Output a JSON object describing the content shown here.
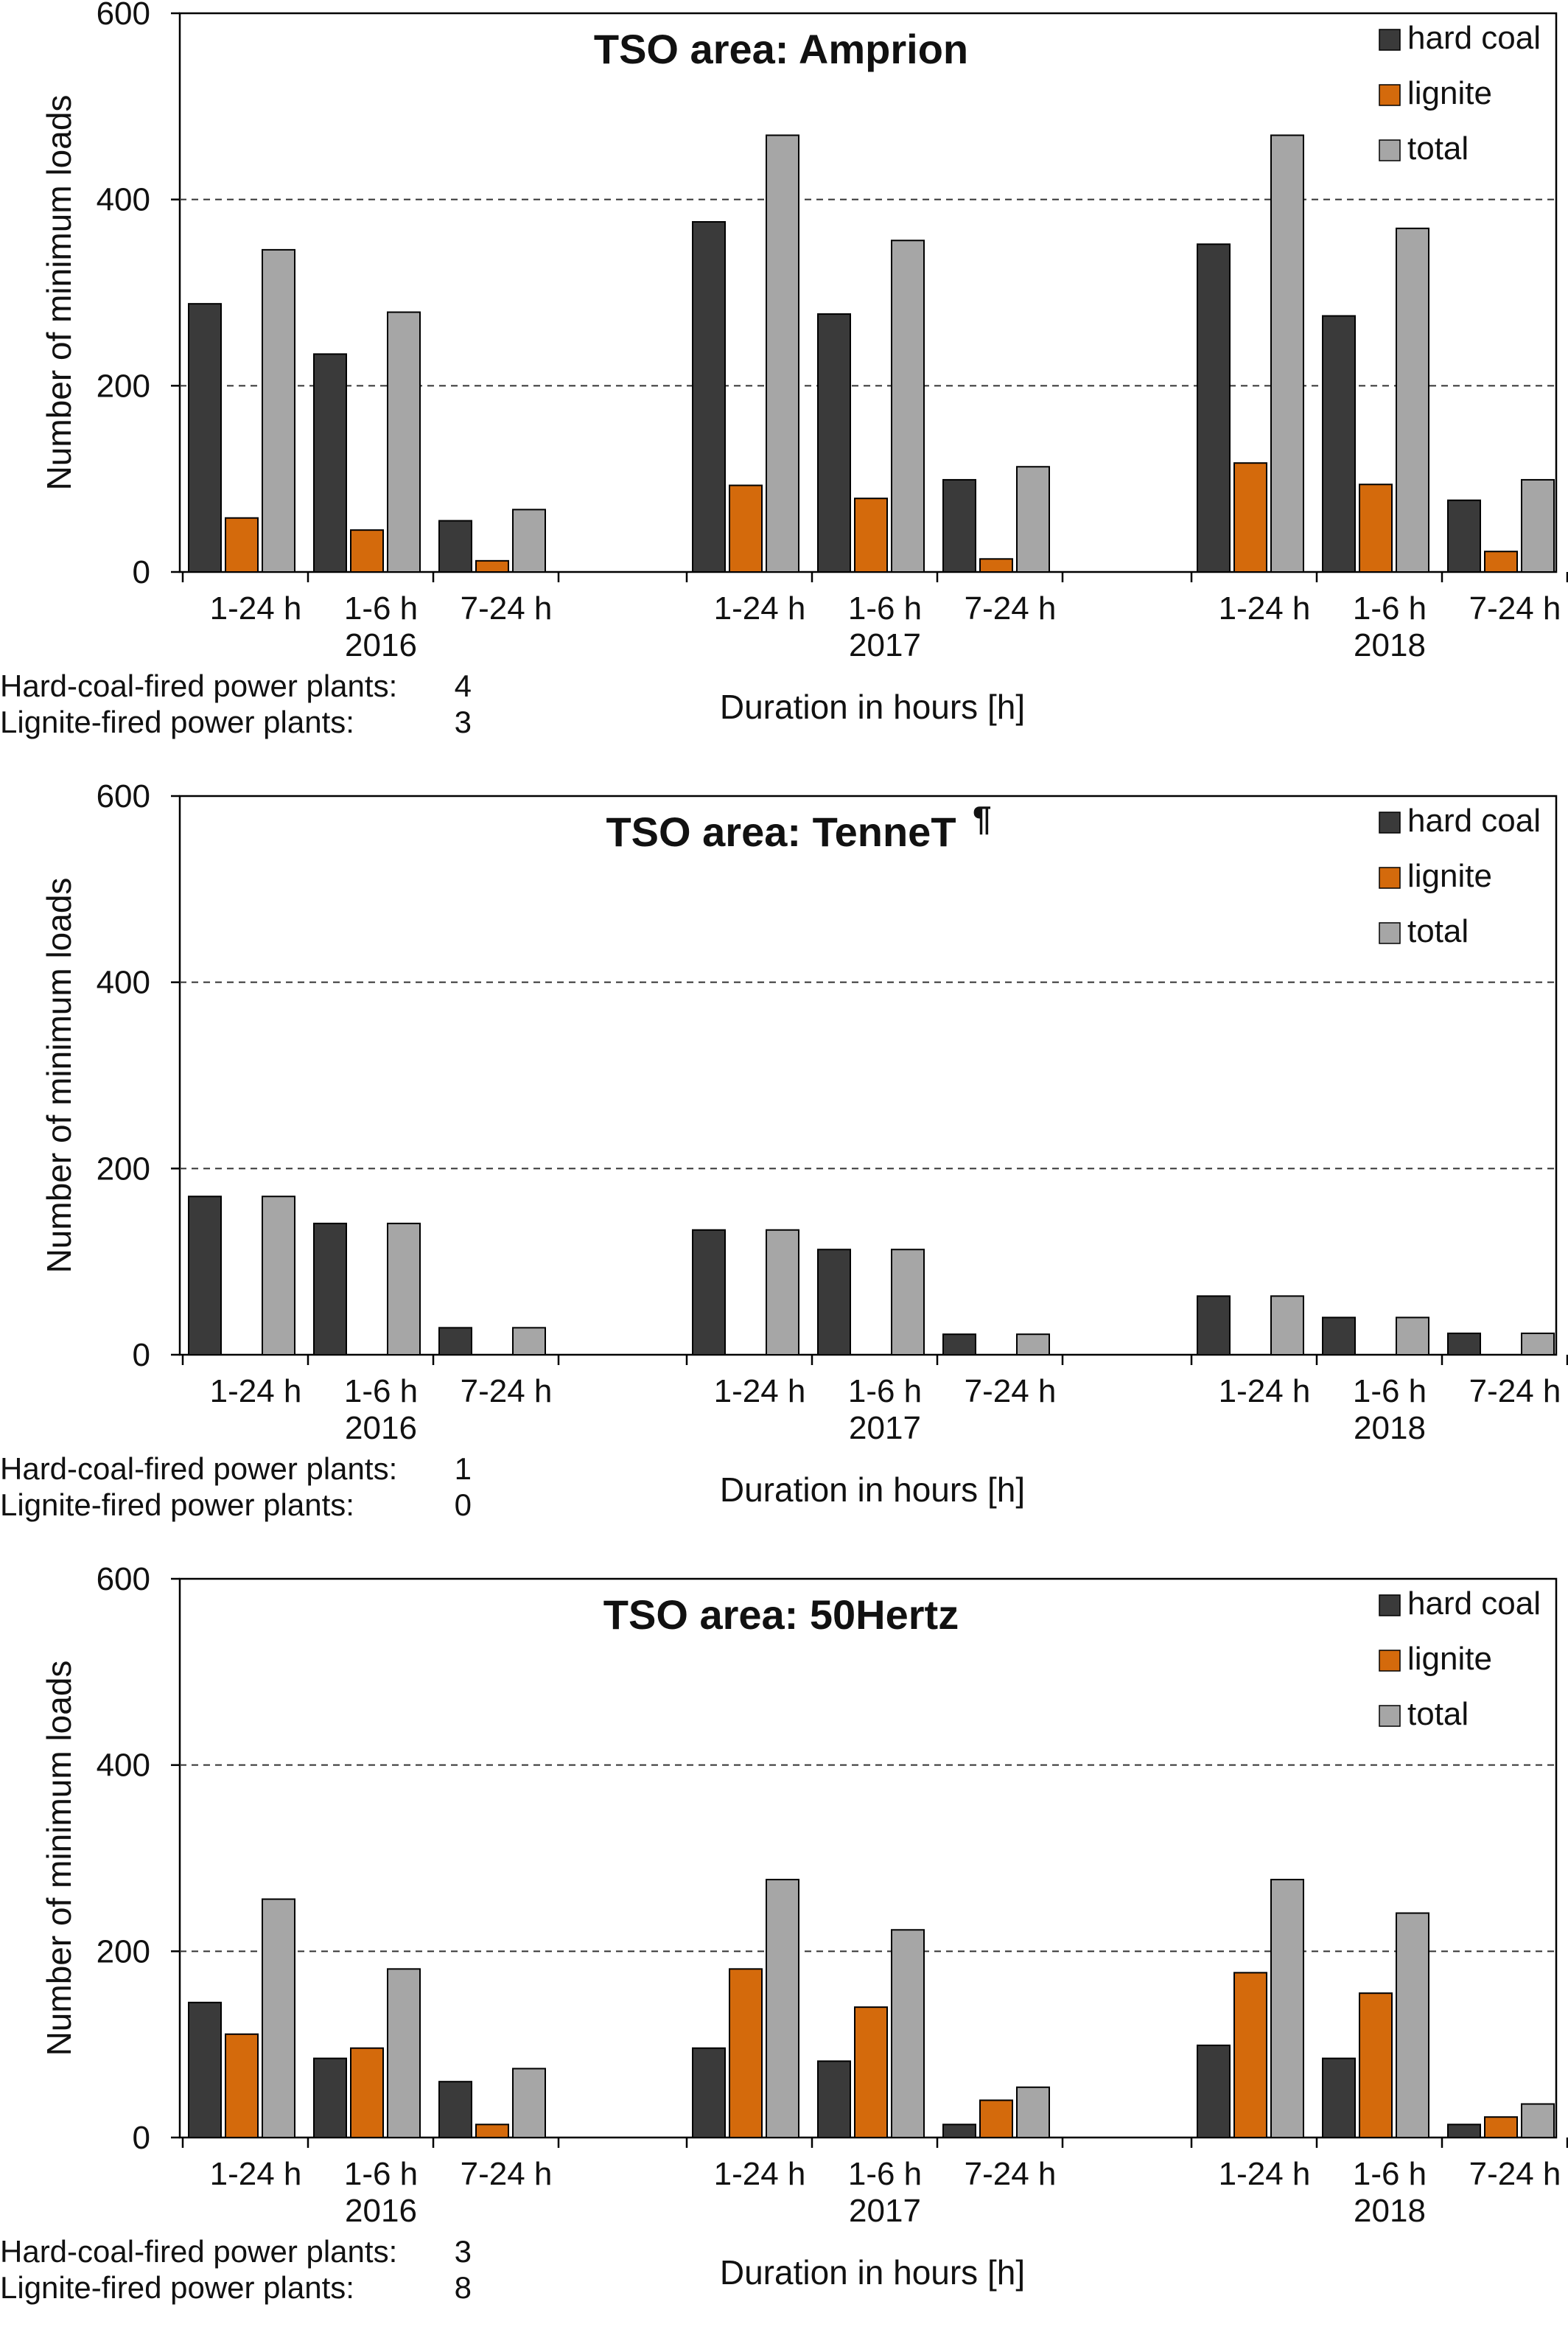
{
  "colors": {
    "hard_coal": "#3a3a3a",
    "lignite": "#d46a0c",
    "total": "#a6a6a6",
    "grid": "#333333",
    "axis": "#000000"
  },
  "chart_data": [
    {
      "type": "bar",
      "title": "TSO area: Amprion",
      "ylabel": "Number of minimum loads",
      "xlabel": "Duration in hours [h]",
      "ylim": [
        0,
        600
      ],
      "yticks": [
        0,
        200,
        400,
        600
      ],
      "grid": "horizontal dashed at 200 and 400",
      "legend_position": "top-right",
      "legend": [
        {
          "name": "hard coal",
          "color": "#3a3a3a"
        },
        {
          "name": "lignite",
          "color": "#d46a0c"
        },
        {
          "name": "total",
          "color": "#a6a6a6"
        }
      ],
      "groups": [
        {
          "year": "2016",
          "categories": [
            "1-24 h",
            "1-6 h",
            "7-24 h"
          ],
          "hard_coal": [
            288,
            234,
            55
          ],
          "lignite": [
            58,
            45,
            12
          ],
          "total": [
            346,
            279,
            67
          ]
        },
        {
          "year": "2017",
          "categories": [
            "1-24 h",
            "1-6 h",
            "7-24 h"
          ],
          "hard_coal": [
            376,
            277,
            99
          ],
          "lignite": [
            93,
            79,
            14
          ],
          "total": [
            469,
            356,
            113
          ]
        },
        {
          "year": "2018",
          "categories": [
            "1-24 h",
            "1-6 h",
            "7-24 h"
          ],
          "hard_coal": [
            352,
            275,
            77
          ],
          "lignite": [
            117,
            94,
            22
          ],
          "total": [
            469,
            369,
            99
          ]
        }
      ],
      "notes": [
        {
          "label": "Hard-coal-fired power plants:",
          "value": "4"
        },
        {
          "label": "Lignite-fired power plants:",
          "value": "3"
        }
      ]
    },
    {
      "type": "bar",
      "title": "TSO area: TenneT",
      "title_mark": "¶",
      "ylabel": "Number of minimum loads",
      "xlabel": "Duration in hours [h]",
      "ylim": [
        0,
        600
      ],
      "yticks": [
        0,
        200,
        400,
        600
      ],
      "grid": "horizontal dashed at 200 and 400",
      "legend_position": "top-right",
      "legend": [
        {
          "name": "hard coal",
          "color": "#3a3a3a"
        },
        {
          "name": "lignite",
          "color": "#d46a0c"
        },
        {
          "name": "total",
          "color": "#a6a6a6"
        }
      ],
      "groups": [
        {
          "year": "2016",
          "categories": [
            "1-24 h",
            "1-6 h",
            "7-24 h"
          ],
          "hard_coal": [
            170,
            141,
            29
          ],
          "lignite": [
            0,
            0,
            0
          ],
          "total": [
            170,
            141,
            29
          ]
        },
        {
          "year": "2017",
          "categories": [
            "1-24 h",
            "1-6 h",
            "7-24 h"
          ],
          "hard_coal": [
            134,
            113,
            22
          ],
          "lignite": [
            0,
            0,
            0
          ],
          "total": [
            134,
            113,
            22
          ]
        },
        {
          "year": "2018",
          "categories": [
            "1-24 h",
            "1-6 h",
            "7-24 h"
          ],
          "hard_coal": [
            63,
            40,
            23
          ],
          "lignite": [
            0,
            0,
            0
          ],
          "total": [
            63,
            40,
            23
          ]
        }
      ],
      "notes": [
        {
          "label": "Hard-coal-fired power plants:",
          "value": "1"
        },
        {
          "label": "Lignite-fired power plants:",
          "value": "0"
        }
      ]
    },
    {
      "type": "bar",
      "title": "TSO area: 50Hertz",
      "ylabel": "Number of minimum loads",
      "xlabel": "Duration in hours [h]",
      "ylim": [
        0,
        600
      ],
      "yticks": [
        0,
        200,
        400,
        600
      ],
      "grid": "horizontal dashed at 200 and 400",
      "legend_position": "top-right",
      "legend": [
        {
          "name": "hard coal",
          "color": "#3a3a3a"
        },
        {
          "name": "lignite",
          "color": "#d46a0c"
        },
        {
          "name": "total",
          "color": "#a6a6a6"
        }
      ],
      "groups": [
        {
          "year": "2016",
          "categories": [
            "1-24 h",
            "1-6 h",
            "7-24 h"
          ],
          "hard_coal": [
            145,
            85,
            60
          ],
          "lignite": [
            111,
            96,
            14
          ],
          "total": [
            256,
            181,
            74
          ]
        },
        {
          "year": "2017",
          "categories": [
            "1-24 h",
            "1-6 h",
            "7-24 h"
          ],
          "hard_coal": [
            96,
            82,
            14
          ],
          "lignite": [
            181,
            140,
            40
          ],
          "total": [
            277,
            223,
            54
          ]
        },
        {
          "year": "2018",
          "categories": [
            "1-24 h",
            "1-6 h",
            "7-24 h"
          ],
          "hard_coal": [
            99,
            85,
            14
          ],
          "lignite": [
            177,
            155,
            22
          ],
          "total": [
            277,
            241,
            36
          ]
        }
      ],
      "notes": [
        {
          "label": "Hard-coal-fired power plants:",
          "value": "3"
        },
        {
          "label": "Lignite-fired power plants:",
          "value": "8"
        }
      ]
    }
  ]
}
